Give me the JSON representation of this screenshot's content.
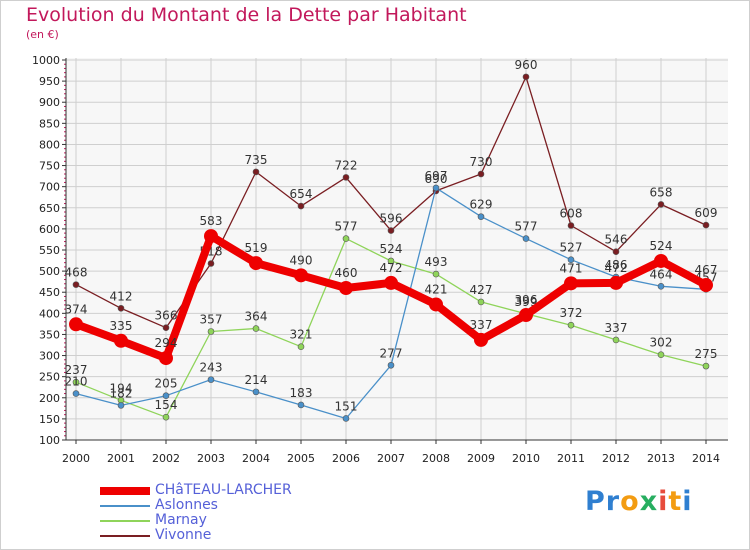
{
  "title": "Evolution du Montant de la Dette par Habitant",
  "subtitle": "(en €)",
  "logo": {
    "text": "Proxiti",
    "letters": [
      "P",
      "r",
      "o",
      "x",
      "i",
      "t",
      "i"
    ],
    "colors": [
      "#2f7fd0",
      "#2f7fd0",
      "#f39c12",
      "#27ae60",
      "#e74c3c",
      "#f39c12",
      "#2f7fd0"
    ]
  },
  "chart_data": {
    "type": "line",
    "x": [
      "2000",
      "2001",
      "2002",
      "2003",
      "2004",
      "2005",
      "2006",
      "2007",
      "2008",
      "2009",
      "2010",
      "2011",
      "2012",
      "2013",
      "2014"
    ],
    "ylim": [
      100,
      1000
    ],
    "yticks": [
      100,
      150,
      200,
      250,
      300,
      350,
      400,
      450,
      500,
      550,
      600,
      650,
      700,
      750,
      800,
      850,
      900,
      950,
      1000
    ],
    "grid": true,
    "legend_position": "bottom-left",
    "series": [
      {
        "name": "Vivonne",
        "color": "#7a1e22",
        "values": [
          468,
          412,
          366,
          518,
          735,
          654,
          722,
          596,
          690,
          730,
          960,
          608,
          546,
          658,
          609
        ]
      },
      {
        "name": "Marnay",
        "color": "#8fd45a",
        "values": [
          237,
          194,
          154,
          357,
          364,
          321,
          577,
          524,
          493,
          427,
          399,
          372,
          337,
          302,
          275
        ]
      },
      {
        "name": "Aslonnes",
        "color": "#4a90c9",
        "values": [
          210,
          182,
          205,
          243,
          214,
          183,
          151,
          277,
          697,
          629,
          577,
          527,
          486,
          464,
          457
        ]
      },
      {
        "name": "CHâTEAU-LARCHER",
        "color": "#ee0000",
        "values": [
          374,
          335,
          294,
          583,
          519,
          490,
          460,
          472,
          421,
          337,
          396,
          471,
          472,
          524,
          467
        ]
      }
    ]
  }
}
